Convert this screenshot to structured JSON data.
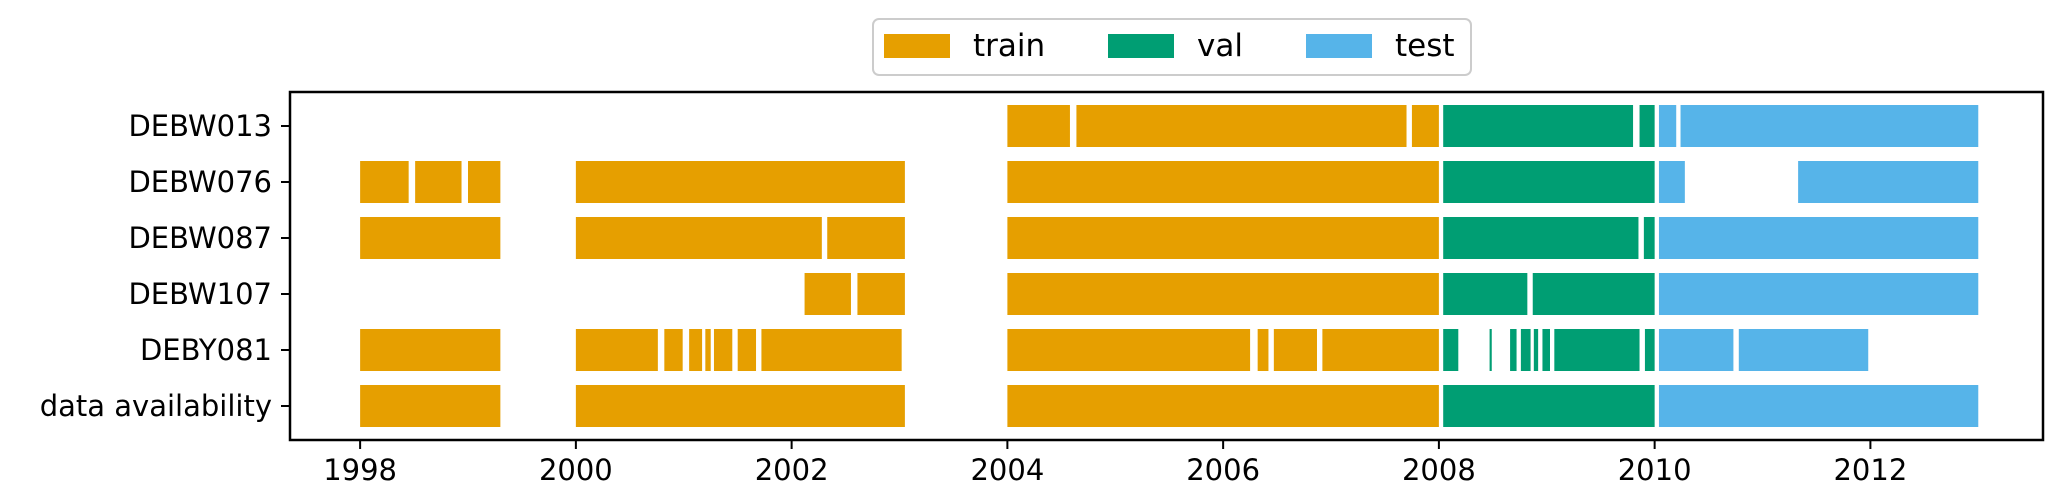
{
  "chart_data": {
    "type": "timeline",
    "xlim": [
      1997.35,
      2013.6
    ],
    "xticks": [
      1998,
      2000,
      2002,
      2004,
      2006,
      2008,
      2010,
      2012
    ],
    "xtick_labels": [
      "1998",
      "2000",
      "2002",
      "2004",
      "2006",
      "2008",
      "2010",
      "2012"
    ],
    "grid": false,
    "legend": {
      "placement": "top-center",
      "entries": [
        {
          "key": "train",
          "label": "train",
          "color": "#E69F00"
        },
        {
          "key": "val",
          "label": "val",
          "color": "#009E73"
        },
        {
          "key": "test",
          "label": "test",
          "color": "#56B4E9"
        }
      ]
    },
    "categories": [
      "DEBW013",
      "DEBW076",
      "DEBW087",
      "DEBW107",
      "DEBY081",
      "data availability"
    ],
    "rows": [
      {
        "name": "DEBW013",
        "segments": [
          [
            "train",
            2004.0,
            2004.58
          ],
          [
            "train",
            2004.64,
            2007.7
          ],
          [
            "train",
            2007.75,
            2008.0
          ],
          [
            "val",
            2008.04,
            2009.8
          ],
          [
            "val",
            2009.86,
            2010.0
          ],
          [
            "test",
            2010.04,
            2010.2
          ],
          [
            "test",
            2010.24,
            2013.0
          ]
        ]
      },
      {
        "name": "DEBW076",
        "segments": [
          [
            "train",
            1998.0,
            1998.45
          ],
          [
            "train",
            1998.51,
            1998.94
          ],
          [
            "train",
            1999.0,
            1999.3
          ],
          [
            "train",
            2000.0,
            2003.05
          ],
          [
            "train",
            2004.0,
            2008.0
          ],
          [
            "val",
            2008.04,
            2010.0
          ],
          [
            "test",
            2010.04,
            2010.28
          ],
          [
            "test",
            2011.33,
            2013.0
          ]
        ]
      },
      {
        "name": "DEBW087",
        "segments": [
          [
            "train",
            1998.0,
            1999.3
          ],
          [
            "train",
            2000.0,
            2002.28
          ],
          [
            "train",
            2002.33,
            2003.05
          ],
          [
            "train",
            2004.0,
            2008.0
          ],
          [
            "val",
            2008.04,
            2009.85
          ],
          [
            "val",
            2009.9,
            2010.0
          ],
          [
            "test",
            2010.04,
            2013.0
          ]
        ]
      },
      {
        "name": "DEBW107",
        "segments": [
          [
            "train",
            2002.12,
            2002.55
          ],
          [
            "train",
            2002.61,
            2003.05
          ],
          [
            "train",
            2004.0,
            2008.0
          ],
          [
            "val",
            2008.04,
            2008.82
          ],
          [
            "val",
            2008.87,
            2010.0
          ],
          [
            "test",
            2010.04,
            2013.0
          ]
        ]
      },
      {
        "name": "DEBY081",
        "segments": [
          [
            "train",
            1998.0,
            1999.3
          ],
          [
            "train",
            2000.0,
            2000.76
          ],
          [
            "train",
            2000.82,
            2000.99
          ],
          [
            "train",
            2001.05,
            2001.17
          ],
          [
            "train",
            2001.2,
            2001.25
          ],
          [
            "train",
            2001.28,
            2001.45
          ],
          [
            "train",
            2001.5,
            2001.67
          ],
          [
            "train",
            2001.72,
            2003.02
          ],
          [
            "train",
            2004.0,
            2006.25
          ],
          [
            "train",
            2006.32,
            2006.42
          ],
          [
            "train",
            2006.47,
            2006.87
          ],
          [
            "train",
            2006.92,
            2008.0
          ],
          [
            "val",
            2008.04,
            2008.18
          ],
          [
            "val",
            2008.47,
            2008.49
          ],
          [
            "val",
            2008.66,
            2008.72
          ],
          [
            "val",
            2008.76,
            2008.85
          ],
          [
            "val",
            2008.88,
            2008.92
          ],
          [
            "val",
            2008.96,
            2009.03
          ],
          [
            "val",
            2009.07,
            2009.86
          ],
          [
            "val",
            2009.91,
            2010.0
          ],
          [
            "test",
            2010.04,
            2010.73
          ],
          [
            "test",
            2010.78,
            2011.98
          ]
        ]
      },
      {
        "name": "data availability",
        "segments": [
          [
            "train",
            1998.0,
            1999.3
          ],
          [
            "train",
            2000.0,
            2003.05
          ],
          [
            "train",
            2004.0,
            2008.0
          ],
          [
            "val",
            2008.04,
            2010.0
          ],
          [
            "test",
            2010.04,
            2013.0
          ]
        ]
      }
    ]
  }
}
